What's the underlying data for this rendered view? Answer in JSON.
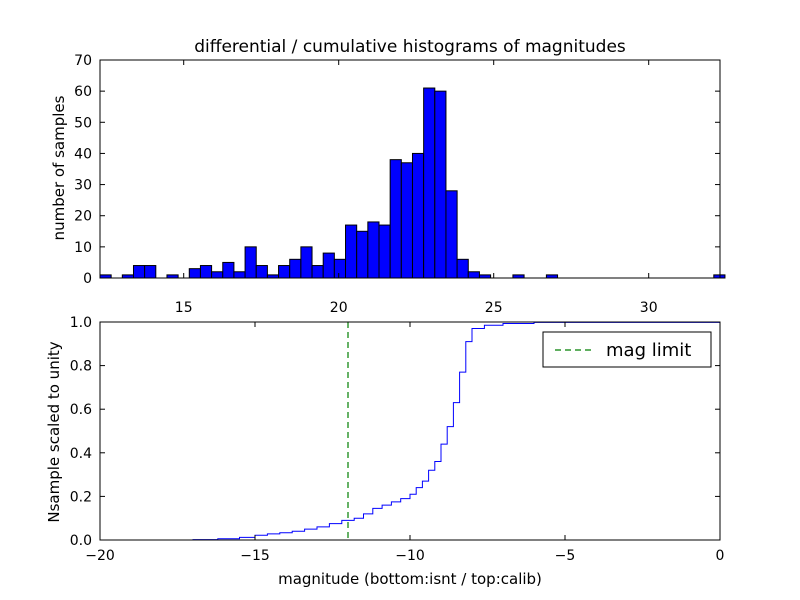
{
  "chart_data": [
    {
      "type": "bar",
      "title": "differential / cumulative histograms of magnitudes",
      "xlabel": "",
      "ylabel": "number of samples",
      "xlim": [
        12.3,
        32.3
      ],
      "ylim": [
        0,
        70
      ],
      "xticks": [
        15,
        20,
        25,
        30
      ],
      "yticks": [
        0,
        10,
        20,
        30,
        40,
        50,
        60,
        70
      ],
      "bar_color": "#0000ff",
      "bin_start": 12.3,
      "bin_width": 0.36,
      "values": [
        1,
        0,
        1,
        4,
        4,
        0,
        1,
        0,
        3,
        4,
        2,
        5,
        2,
        10,
        4,
        1,
        4,
        6,
        10,
        4,
        8,
        6,
        17,
        15,
        18,
        17,
        38,
        37,
        40,
        61,
        60,
        28,
        6,
        2,
        1,
        0,
        0,
        1,
        0,
        0,
        1,
        0,
        0,
        0,
        0,
        0,
        0,
        0,
        0,
        0,
        0,
        0,
        0,
        0,
        0,
        1
      ],
      "grid": false
    },
    {
      "type": "line",
      "xlabel": "magnitude (bottom:isnt / top:calib)",
      "ylabel": "Nsample scaled to unity",
      "xlim": [
        -20,
        0
      ],
      "ylim": [
        0,
        1.0
      ],
      "xticks": [
        -20,
        -15,
        -10,
        -5,
        0
      ],
      "yticks": [
        0.0,
        0.2,
        0.4,
        0.6,
        0.8,
        1.0
      ],
      "ytick_labels": [
        "0.0",
        "0.2",
        "0.4",
        "0.6",
        "0.8",
        "1.0"
      ],
      "line_color": "#0000ff",
      "step": true,
      "x": [
        -20,
        -17,
        -16.2,
        -15.5,
        -15.0,
        -14.6,
        -14.2,
        -13.8,
        -13.4,
        -13.0,
        -12.6,
        -12.2,
        -11.8,
        -11.5,
        -11.2,
        -10.9,
        -10.6,
        -10.3,
        -10.0,
        -9.8,
        -9.6,
        -9.4,
        -9.2,
        -9.0,
        -8.8,
        -8.6,
        -8.4,
        -8.2,
        -8.0,
        -7.6,
        -7.0,
        -6.0,
        0
      ],
      "y": [
        0,
        0.002,
        0.006,
        0.012,
        0.022,
        0.028,
        0.033,
        0.04,
        0.05,
        0.06,
        0.075,
        0.09,
        0.1,
        0.12,
        0.145,
        0.16,
        0.175,
        0.19,
        0.21,
        0.24,
        0.27,
        0.32,
        0.36,
        0.44,
        0.52,
        0.63,
        0.77,
        0.91,
        0.97,
        0.985,
        0.993,
        0.998,
        1.0
      ],
      "vline": {
        "x": -12,
        "color": "#007f00",
        "style": "dashed"
      },
      "legend": {
        "label": "mag limit",
        "placement": "upper-right"
      },
      "grid": false
    }
  ]
}
